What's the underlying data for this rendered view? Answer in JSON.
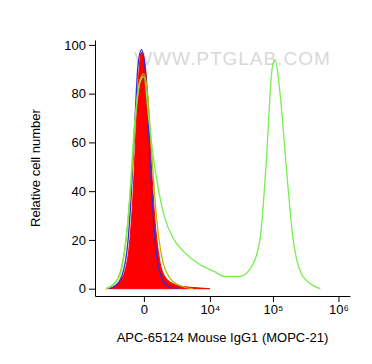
{
  "chart_data": {
    "type": "line",
    "x_label": "APC-65124 Mouse IgG1 (MOPC-21)",
    "y_label": "Relative cell number",
    "annotations": [
      "WWW.PTGLAB.COM"
    ],
    "log": "x",
    "xlim": [
      -5000,
      1500000
    ],
    "xticks": [
      {
        "value": 0,
        "label": "0"
      },
      {
        "value": 10000,
        "label": "10⁴"
      },
      {
        "value": 100000,
        "label": "10⁵"
      },
      {
        "value": 1000000,
        "label": "10⁶"
      }
    ],
    "ylim": [
      -3,
      102
    ],
    "yticks": [
      0,
      20,
      40,
      60,
      80,
      100
    ],
    "series": [
      {
        "type": "area",
        "color": "#ff0000",
        "x": [
          -3000,
          -2000,
          -1500,
          -1000,
          -700,
          -500,
          -350,
          -200,
          -100,
          0,
          150,
          300,
          500,
          800,
          1200,
          2000,
          3000,
          5000,
          10000
        ],
        "values": [
          0,
          1,
          3,
          8,
          20,
          40,
          65,
          90,
          97,
          95,
          80,
          55,
          30,
          12,
          5,
          2,
          1,
          0.5,
          0
        ]
      },
      {
        "type": "line",
        "color": "#3a2cd0",
        "x": [
          -2500,
          -1500,
          -900,
          -600,
          -400,
          -250,
          -100,
          50,
          200,
          350,
          550,
          900,
          1500,
          2500
        ],
        "values": [
          0,
          3,
          15,
          40,
          70,
          92,
          98,
          90,
          65,
          40,
          18,
          5,
          1,
          0
        ]
      },
      {
        "type": "line",
        "color": "#b8b800",
        "x": [
          -3000,
          -1800,
          -1000,
          -600,
          -350,
          -150,
          0,
          150,
          350,
          600,
          1000,
          1700,
          3000,
          5000
        ],
        "values": [
          0,
          3,
          18,
          45,
          72,
          86,
          88,
          80,
          55,
          30,
          12,
          4,
          1,
          0
        ]
      },
      {
        "type": "line",
        "color": "#77ee55",
        "x": [
          -3000,
          -1500,
          -800,
          -400,
          -150,
          0,
          200,
          466,
          1131,
          2075,
          3420,
          6580,
          11950,
          17500,
          30500,
          43900,
          62900,
          78000,
          96800,
          107700,
          128600,
          159900,
          204400,
          262600,
          373600,
          530000
        ],
        "values": [
          0,
          5,
          30,
          70,
          85,
          87,
          70,
          52,
          30,
          20,
          15,
          10,
          7,
          5,
          5,
          8,
          20,
          50,
          90,
          94,
          80,
          50,
          20,
          7,
          2,
          0
        ]
      }
    ]
  }
}
